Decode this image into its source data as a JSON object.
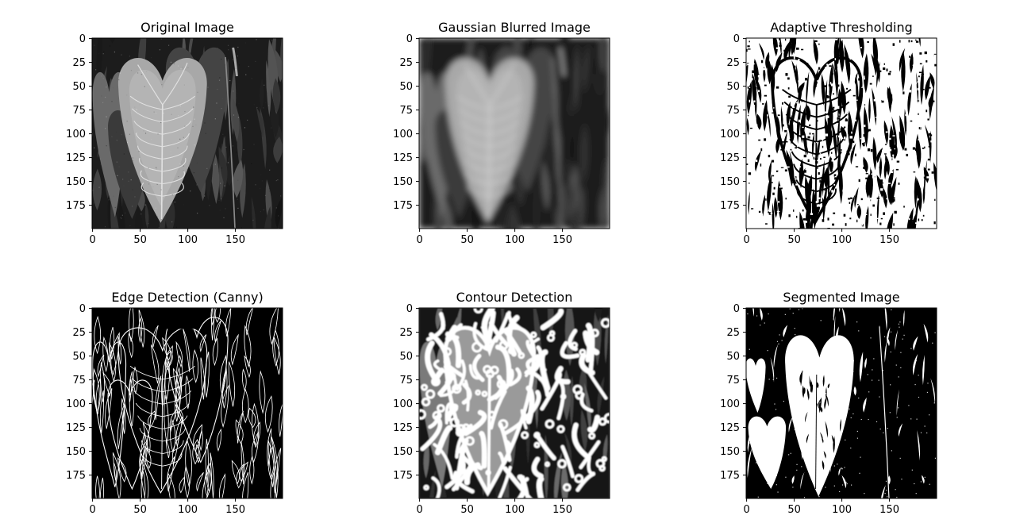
{
  "figure": {
    "background": "#ffffff",
    "panels": [
      {
        "title": "Original Image",
        "render_style": "original",
        "x_ticks": [
          "0",
          "50",
          "100",
          "150"
        ],
        "y_ticks": [
          "0",
          "25",
          "50",
          "75",
          "100",
          "125",
          "150",
          "175"
        ],
        "image_size": [
          200,
          200
        ]
      },
      {
        "title": "Gaussian Blurred Image",
        "render_style": "blurred",
        "x_ticks": [
          "0",
          "50",
          "100",
          "150"
        ],
        "y_ticks": [
          "0",
          "25",
          "50",
          "75",
          "100",
          "125",
          "150",
          "175"
        ],
        "image_size": [
          200,
          200
        ]
      },
      {
        "title": "Adaptive Thresholding",
        "render_style": "adaptive-threshold",
        "x_ticks": [
          "0",
          "50",
          "100",
          "150"
        ],
        "y_ticks": [
          "0",
          "25",
          "50",
          "75",
          "100",
          "125",
          "150",
          "175"
        ],
        "image_size": [
          200,
          200
        ]
      },
      {
        "title": "Edge Detection (Canny)",
        "render_style": "canny-edges",
        "x_ticks": [
          "0",
          "50",
          "100",
          "150"
        ],
        "y_ticks": [
          "0",
          "25",
          "50",
          "75",
          "100",
          "125",
          "150",
          "175"
        ],
        "image_size": [
          200,
          200
        ]
      },
      {
        "title": "Contour Detection",
        "render_style": "contours",
        "x_ticks": [
          "0",
          "50",
          "100",
          "150"
        ],
        "y_ticks": [
          "0",
          "25",
          "50",
          "75",
          "100",
          "125",
          "150",
          "175"
        ],
        "image_size": [
          200,
          200
        ]
      },
      {
        "title": "Segmented Image",
        "render_style": "segmented",
        "x_ticks": [
          "0",
          "50",
          "100",
          "150"
        ],
        "y_ticks": [
          "0",
          "25",
          "50",
          "75",
          "100",
          "125",
          "150",
          "175"
        ],
        "image_size": [
          200,
          200
        ]
      }
    ]
  }
}
